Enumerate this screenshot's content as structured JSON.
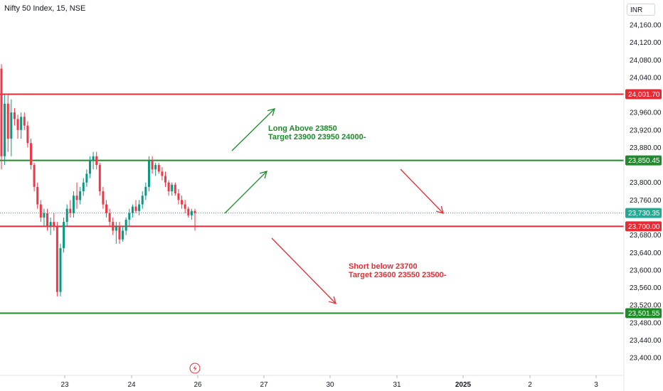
{
  "header": {
    "symbol_title": "Nifty 50 Index, 15, NSE",
    "currency": "INR"
  },
  "colors": {
    "up": "#089981",
    "down": "#f23645",
    "support_line": "#1e8c2b",
    "resistance_line": "#e52b36",
    "current_price": "#22ab94",
    "long_arrow": "#1e8c2b",
    "short_arrow": "#e52b36"
  },
  "chart_data": {
    "type": "candlestick",
    "ylim": [
      23380,
      24190
    ],
    "y_ticks": [
      "24,160.00",
      "24,120.00",
      "24,080.00",
      "24,040.00",
      "23,960.00",
      "23,920.00",
      "23,880.00",
      "23,800.00",
      "23,760.00",
      "23,680.00",
      "23,640.00",
      "23,600.00",
      "23,560.00",
      "23,520.00",
      "23,480.00",
      "23,440.00",
      "23,400.00"
    ],
    "y_tick_values": [
      24160,
      24120,
      24080,
      24040,
      23960,
      23920,
      23880,
      23800,
      23760,
      23680,
      23640,
      23600,
      23560,
      23520,
      23480,
      23440,
      23400
    ],
    "x_ticks": [
      "23",
      "24",
      "26",
      "27",
      "30",
      "31",
      "2025",
      "2",
      "3"
    ],
    "horizontal_levels": [
      {
        "label": "24,001.70",
        "value": 24001.7,
        "kind": "resistance"
      },
      {
        "label": "23,850.45",
        "value": 23850.45,
        "kind": "support"
      },
      {
        "label": "23,730.35",
        "value": 23730.35,
        "kind": "current"
      },
      {
        "label": "23,700.00",
        "value": 23700.0,
        "kind": "resistance"
      },
      {
        "label": "23,501.55",
        "value": 23501.55,
        "kind": "support"
      }
    ],
    "candles": [
      [
        24060,
        24070,
        23830,
        23860
      ],
      [
        23860,
        24000,
        23840,
        23980
      ],
      [
        23980,
        24000,
        23870,
        23900
      ],
      [
        23900,
        23990,
        23860,
        23960
      ],
      [
        23960,
        23970,
        23930,
        23945
      ],
      [
        23945,
        23955,
        23900,
        23920
      ],
      [
        23920,
        23960,
        23900,
        23950
      ],
      [
        23950,
        23960,
        23920,
        23930
      ],
      [
        23930,
        23940,
        23880,
        23890
      ],
      [
        23890,
        23900,
        23830,
        23840
      ],
      [
        23840,
        23845,
        23780,
        23790
      ],
      [
        23790,
        23800,
        23740,
        23750
      ],
      [
        23750,
        23760,
        23710,
        23720
      ],
      [
        23720,
        23740,
        23700,
        23730
      ],
      [
        23730,
        23740,
        23690,
        23700
      ],
      [
        23700,
        23720,
        23680,
        23710
      ],
      [
        23710,
        23730,
        23690,
        23700
      ],
      [
        23700,
        23710,
        23540,
        23550
      ],
      [
        23550,
        23660,
        23540,
        23650
      ],
      [
        23650,
        23720,
        23640,
        23710
      ],
      [
        23710,
        23750,
        23700,
        23740
      ],
      [
        23740,
        23760,
        23720,
        23730
      ],
      [
        23730,
        23780,
        23720,
        23770
      ],
      [
        23770,
        23800,
        23740,
        23760
      ],
      [
        23760,
        23790,
        23750,
        23780
      ],
      [
        23780,
        23810,
        23770,
        23800
      ],
      [
        23800,
        23830,
        23790,
        23820
      ],
      [
        23820,
        23860,
        23810,
        23850
      ],
      [
        23850,
        23870,
        23830,
        23860
      ],
      [
        23860,
        23870,
        23830,
        23840
      ],
      [
        23840,
        23845,
        23770,
        23780
      ],
      [
        23780,
        23790,
        23740,
        23750
      ],
      [
        23750,
        23760,
        23720,
        23730
      ],
      [
        23730,
        23740,
        23700,
        23710
      ],
      [
        23710,
        23720,
        23680,
        23690
      ],
      [
        23690,
        23710,
        23660,
        23700
      ],
      [
        23700,
        23710,
        23660,
        23670
      ],
      [
        23670,
        23700,
        23665,
        23690
      ],
      [
        23690,
        23720,
        23680,
        23715
      ],
      [
        23715,
        23740,
        23700,
        23730
      ],
      [
        23730,
        23750,
        23720,
        23745
      ],
      [
        23745,
        23760,
        23730,
        23735
      ],
      [
        23735,
        23760,
        23725,
        23750
      ],
      [
        23750,
        23780,
        23740,
        23770
      ],
      [
        23770,
        23800,
        23760,
        23790
      ],
      [
        23790,
        23860,
        23780,
        23850
      ],
      [
        23850,
        23860,
        23820,
        23830
      ],
      [
        23830,
        23845,
        23815,
        23840
      ],
      [
        23840,
        23845,
        23820,
        23825
      ],
      [
        23825,
        23835,
        23805,
        23815
      ],
      [
        23815,
        23825,
        23790,
        23800
      ],
      [
        23800,
        23805,
        23770,
        23780
      ],
      [
        23780,
        23800,
        23770,
        23795
      ],
      [
        23795,
        23800,
        23770,
        23775
      ],
      [
        23775,
        23785,
        23750,
        23760
      ],
      [
        23760,
        23770,
        23740,
        23750
      ],
      [
        23750,
        23760,
        23730,
        23740
      ],
      [
        23740,
        23745,
        23720,
        23725
      ],
      [
        23725,
        23740,
        23715,
        23735
      ],
      [
        23735,
        23740,
        23690,
        23730
      ]
    ]
  },
  "annotations": {
    "long": {
      "line1": "Long Above 23850",
      "line2": "Target 23900 23950 24000-"
    },
    "short": {
      "line1": "Short below 23700",
      "line2": "Target 23600 23550 23500-"
    }
  },
  "icons": {
    "event_marker": "lightning-icon"
  }
}
